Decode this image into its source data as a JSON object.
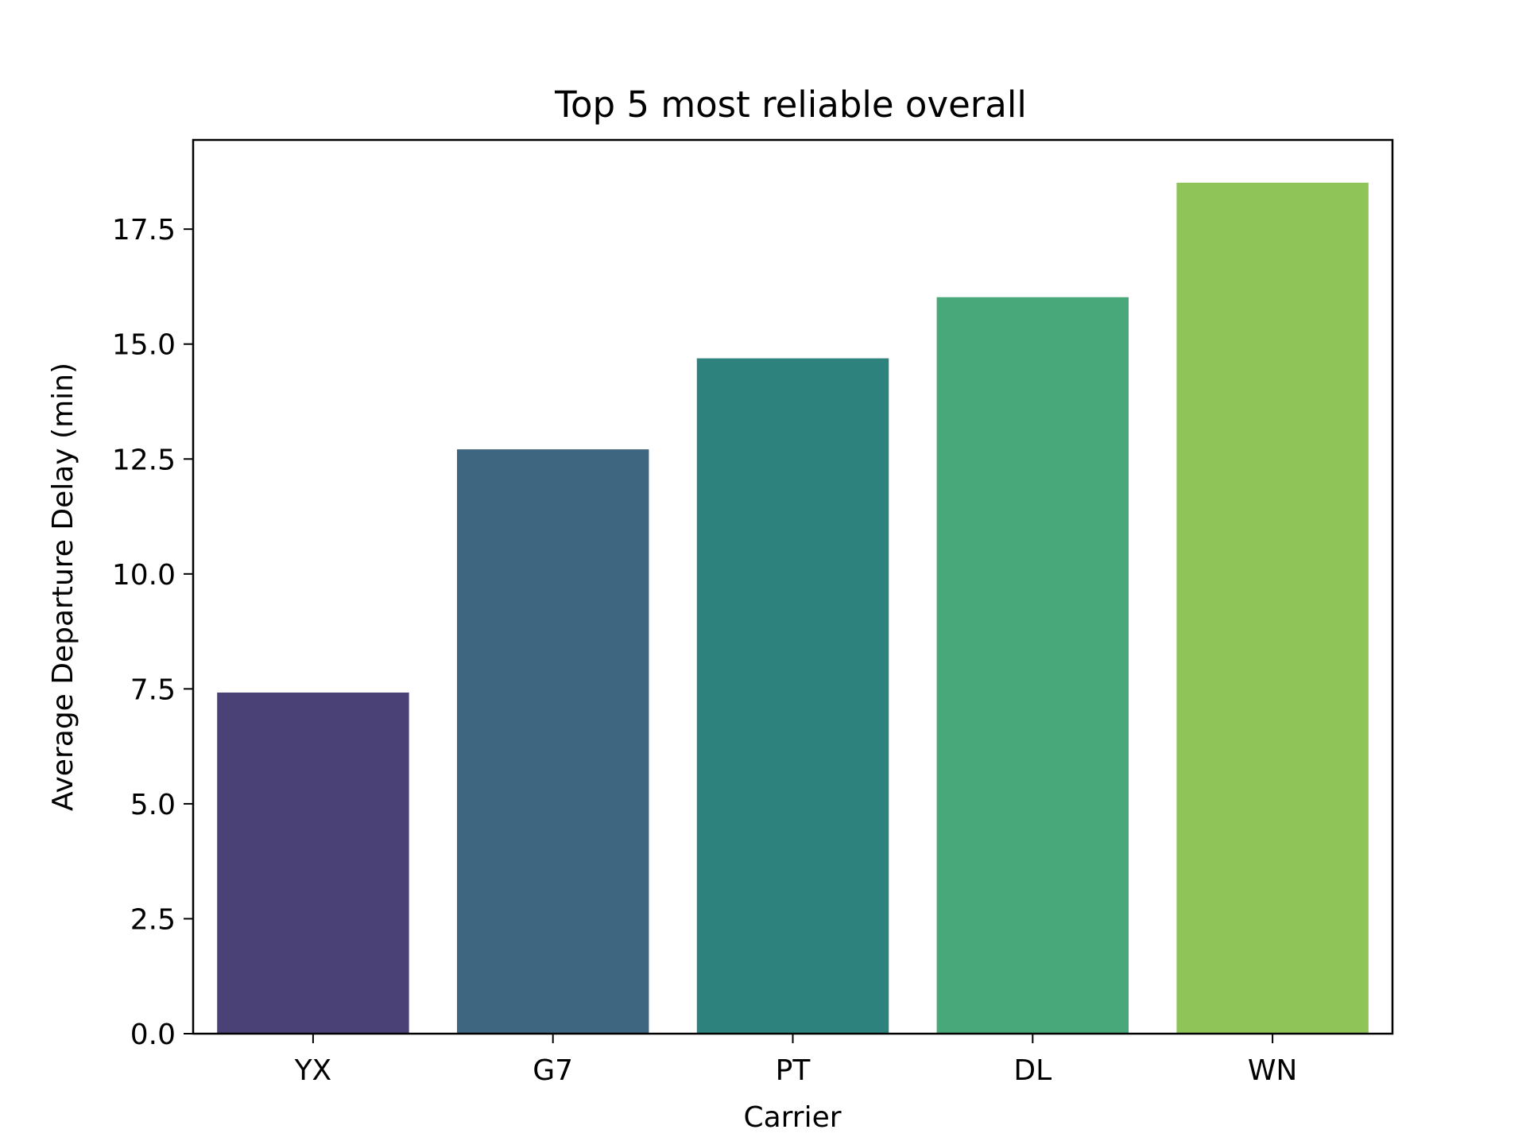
{
  "chart_data": {
    "type": "bar",
    "title": "Top 5 most reliable overall",
    "xlabel": "Carrier",
    "ylabel": "Average Departure Delay (min)",
    "categories": [
      "YX",
      "G7",
      "PT",
      "DL",
      "WN"
    ],
    "values": [
      7.42,
      12.71,
      14.69,
      16.02,
      18.51
    ],
    "colors": [
      "#4a4277",
      "#3f6680",
      "#2e827e",
      "#48a879",
      "#8ec458"
    ],
    "ylim": [
      0,
      19.44
    ],
    "yticks": [
      0.0,
      2.5,
      5.0,
      7.5,
      10.0,
      12.5,
      15.0,
      17.5
    ],
    "ytick_labels": [
      "0.0",
      "2.5",
      "5.0",
      "7.5",
      "10.0",
      "12.5",
      "15.0",
      "17.5"
    ],
    "grid": false,
    "legend": "none"
  }
}
